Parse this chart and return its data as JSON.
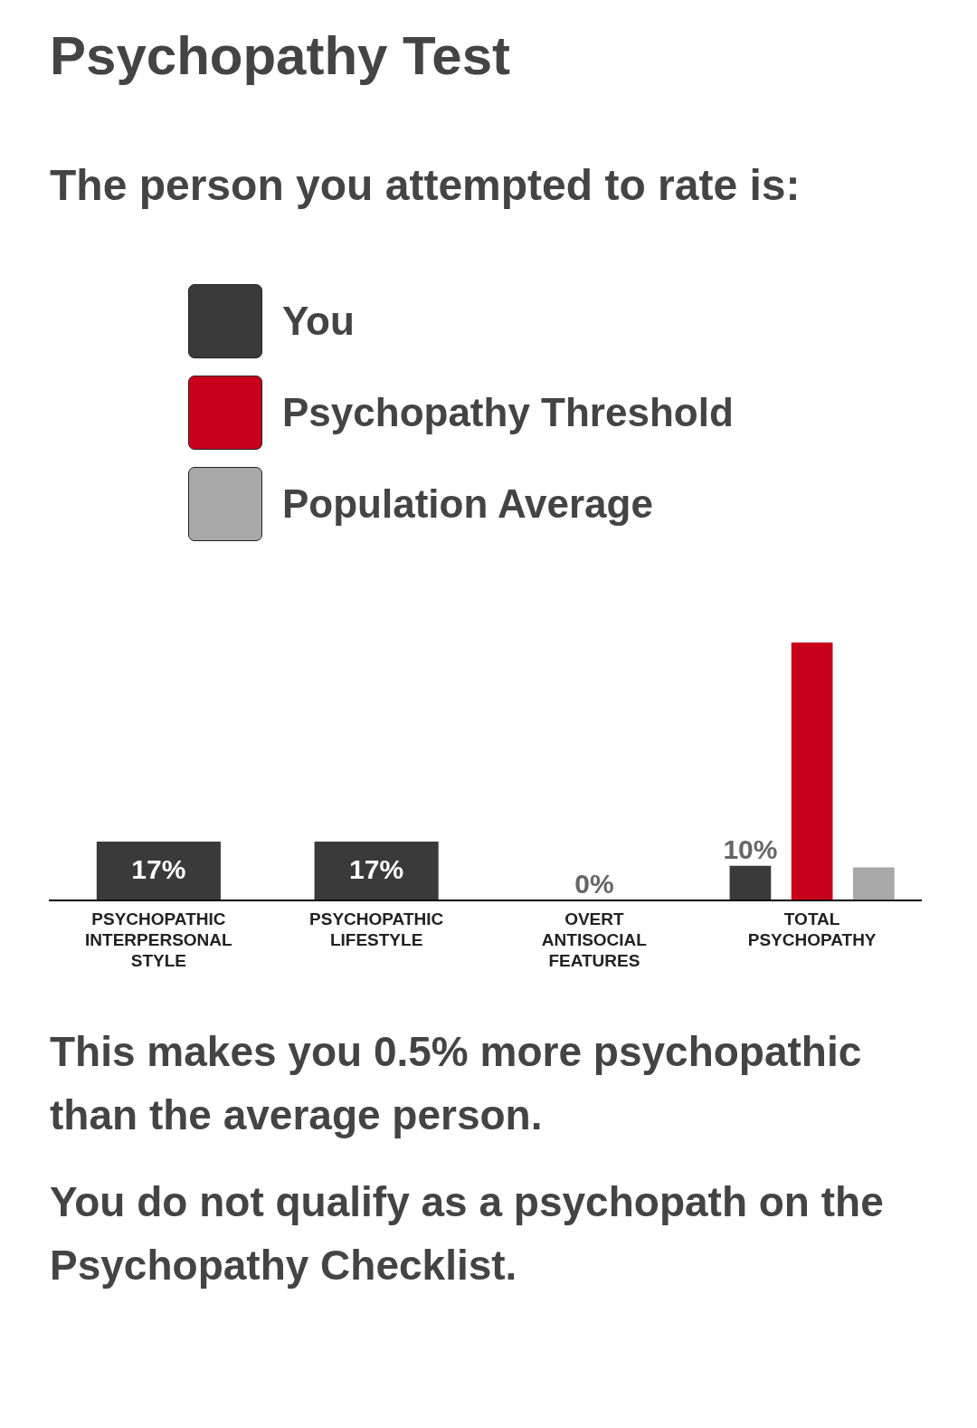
{
  "chart_data": {
    "type": "bar",
    "title": "Psychopathy Test",
    "subtitle": "The person you attempted to rate is:",
    "categories": [
      "PSYCHOPATHIC INTERPERSONAL STYLE",
      "PSYCHOPATHIC LIFESTYLE",
      "OVERT ANTISOCIAL FEATURES",
      "TOTAL PSYCHOPATHY"
    ],
    "series": [
      {
        "name": "You",
        "color": "#3a3a3a",
        "values": [
          17,
          17,
          0,
          10
        ],
        "value_labels": [
          "17%",
          "17%",
          "0%",
          "10%"
        ]
      },
      {
        "name": "Psychopathy Threshold",
        "color": "#c8001c",
        "values": [
          null,
          null,
          null,
          75
        ]
      },
      {
        "name": "Population Average",
        "color": "#a8a8a8",
        "values": [
          null,
          null,
          null,
          9.5
        ]
      }
    ],
    "tick_labels": "x",
    "legend": "top",
    "annotations": [
      "This makes you 0.5% more psychopathic than the average person.",
      "You do not qualify as a psychopath on the Psychopathy Checklist."
    ]
  }
}
